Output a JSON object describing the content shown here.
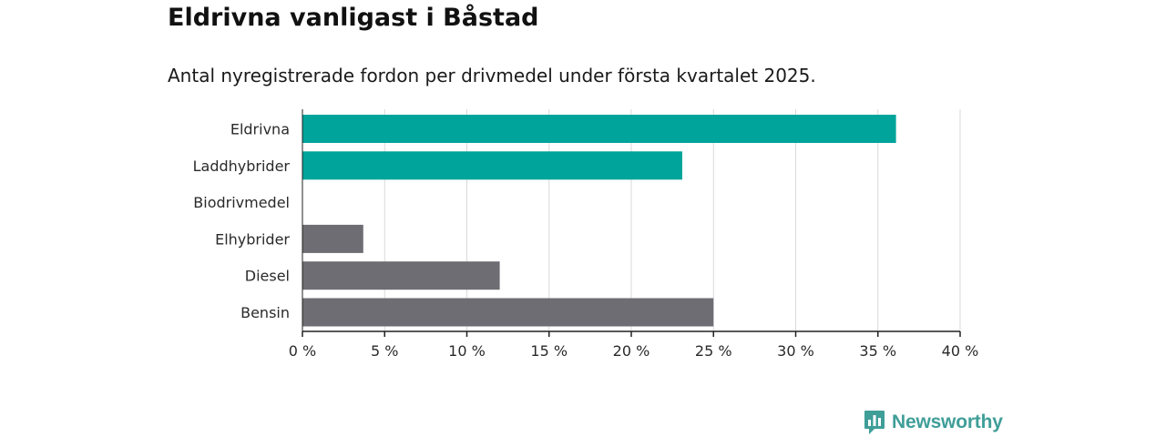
{
  "title": "Eldrivna vanligast i Båstad",
  "subtitle": "Antal nyregistrerade fordon per drivmedel under första kvartalet 2025.",
  "brand": {
    "name": "Newsworthy",
    "icon": "bar-chart-logo-icon"
  },
  "colors": {
    "electric": "#00a49a",
    "other": "#6e6d73",
    "grid": "#d9d9d9",
    "axis": "#222222"
  },
  "chart_data": {
    "type": "bar",
    "orientation": "horizontal",
    "categories": [
      "Eldrivna",
      "Laddhybrider",
      "Biodrivmedel",
      "Elhybrider",
      "Diesel",
      "Bensin"
    ],
    "values": [
      36.1,
      23.1,
      0,
      3.7,
      12.0,
      25.0
    ],
    "bar_colors": [
      "#00a49a",
      "#00a49a",
      "#00a49a",
      "#6e6d73",
      "#6e6d73",
      "#6e6d73"
    ],
    "xlim": [
      0,
      40
    ],
    "xticks": [
      0,
      5,
      10,
      15,
      20,
      25,
      30,
      35,
      40
    ],
    "xtick_labels": [
      "0 %",
      "5 %",
      "10 %",
      "15 %",
      "20 %",
      "25 %",
      "30 %",
      "35 %",
      "40 %"
    ],
    "grid": true,
    "legend": "none"
  }
}
